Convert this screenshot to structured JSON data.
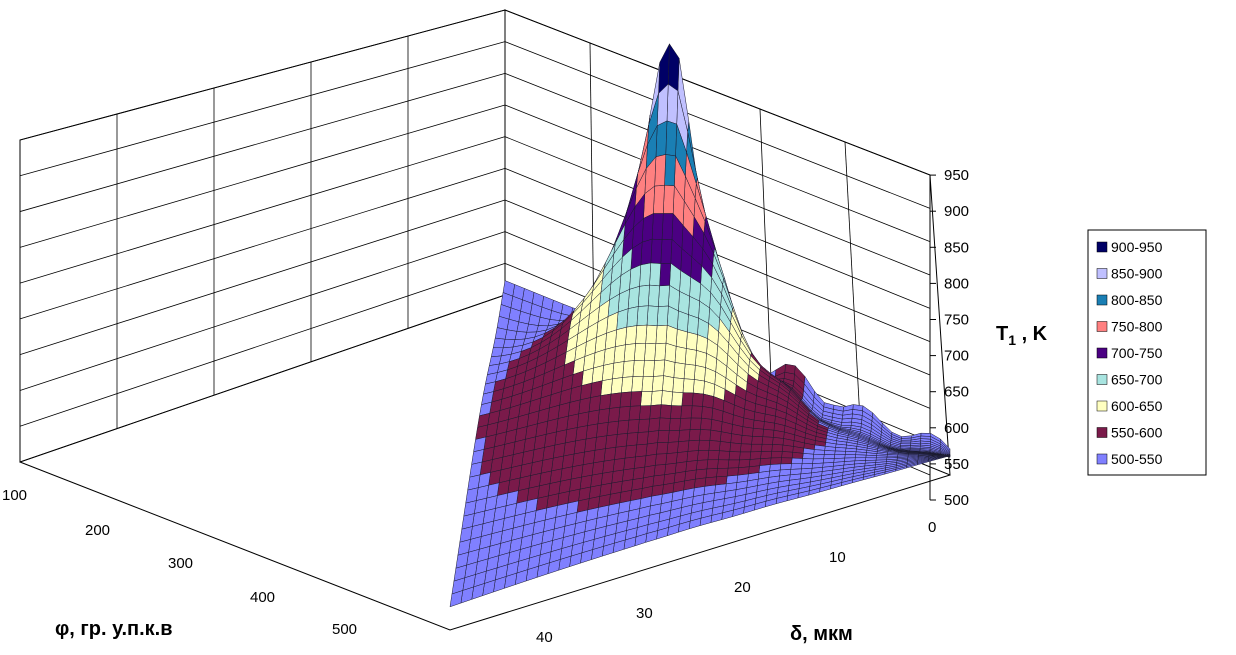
{
  "chart_data": {
    "type": "surface",
    "title": "",
    "z_axis": {
      "label_main": "T",
      "label_sub": "1",
      "label_unit": " ,  K",
      "ticks": [
        500,
        550,
        600,
        650,
        700,
        750,
        800,
        850,
        900,
        950
      ],
      "range": [
        500,
        950
      ]
    },
    "phi_axis": {
      "label": "φ, гр. у.п.к.в",
      "ticks": [
        100,
        200,
        300,
        400,
        500
      ]
    },
    "delta_axis": {
      "label": "δ, мкм",
      "ticks": [
        0,
        10,
        20,
        30,
        40
      ]
    },
    "legend": {
      "position": "right",
      "entries": [
        {
          "label": "900-950",
          "color": "#000066"
        },
        {
          "label": "850-900",
          "color": "#c0c0ff"
        },
        {
          "label": "800-850",
          "color": "#1a7fb4"
        },
        {
          "label": "750-800",
          "color": "#ff8080"
        },
        {
          "label": "700-750",
          "color": "#4b0082"
        },
        {
          "label": "650-700",
          "color": "#a8e4e0"
        },
        {
          "label": "600-650",
          "color": "#ffffc0"
        },
        {
          "label": "550-600",
          "color": "#7a1a4a"
        },
        {
          "label": "500-550",
          "color": "#8080ff"
        }
      ]
    },
    "approximate_peak": {
      "phi": 380,
      "delta": 0,
      "T": 930
    },
    "grid": true
  }
}
